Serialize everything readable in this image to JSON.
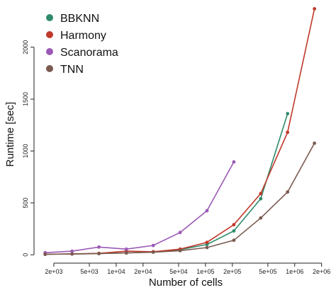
{
  "chart_data": {
    "type": "line",
    "xlabel": "Number of cells",
    "ylabel": "Runtime [sec]",
    "x_scale": "log",
    "xlim": [
      1200,
      2600000
    ],
    "ylim": [
      -80,
      2400
    ],
    "x_ticks": [
      {
        "value": 2000,
        "label": "2e+03"
      },
      {
        "value": 5000,
        "label": "5e+03"
      },
      {
        "value": 10000,
        "label": "1e+04"
      },
      {
        "value": 20000,
        "label": "2e+04"
      },
      {
        "value": 50000,
        "label": "5e+04"
      },
      {
        "value": 100000,
        "label": "1e+05"
      },
      {
        "value": 200000,
        "label": "2e+05"
      },
      {
        "value": 500000,
        "label": "5e+05"
      },
      {
        "value": 1000000,
        "label": "1e+06"
      },
      {
        "value": 2000000,
        "label": "2e+06"
      }
    ],
    "y_ticks": [
      {
        "value": 0,
        "label": "0"
      },
      {
        "value": 500,
        "label": "500"
      },
      {
        "value": 1000,
        "label": "1000"
      },
      {
        "value": 1500,
        "label": "1500"
      },
      {
        "value": 2000,
        "label": "2000"
      }
    ],
    "legend_position": "top-left",
    "series": [
      {
        "name": "BBKNN",
        "color": "#2e8b6a",
        "x": [
          1600,
          3200,
          6400,
          13000,
          26000,
          52000,
          104000,
          208000,
          416000,
          832000
        ],
        "y": [
          5,
          8,
          12,
          18,
          28,
          50,
          100,
          230,
          540,
          1360
        ]
      },
      {
        "name": "Harmony",
        "color": "#c0392b",
        "x": [
          1600,
          3200,
          6400,
          13000,
          26000,
          52000,
          104000,
          208000,
          416000,
          832000,
          1664000
        ],
        "y": [
          5,
          9,
          14,
          35,
          30,
          55,
          120,
          290,
          590,
          1180,
          2370
        ]
      },
      {
        "name": "Scanorama",
        "color": "#9b59b6",
        "x": [
          1600,
          3200,
          6400,
          13000,
          26000,
          52000,
          104000,
          208000
        ],
        "y": [
          20,
          35,
          75,
          55,
          90,
          215,
          425,
          895
        ]
      },
      {
        "name": "TNN",
        "color": "#7b5a50",
        "x": [
          1600,
          3200,
          6400,
          13000,
          26000,
          52000,
          104000,
          208000,
          416000,
          832000,
          1664000
        ],
        "y": [
          5,
          8,
          12,
          18,
          25,
          40,
          70,
          140,
          355,
          605,
          1075
        ]
      }
    ]
  }
}
